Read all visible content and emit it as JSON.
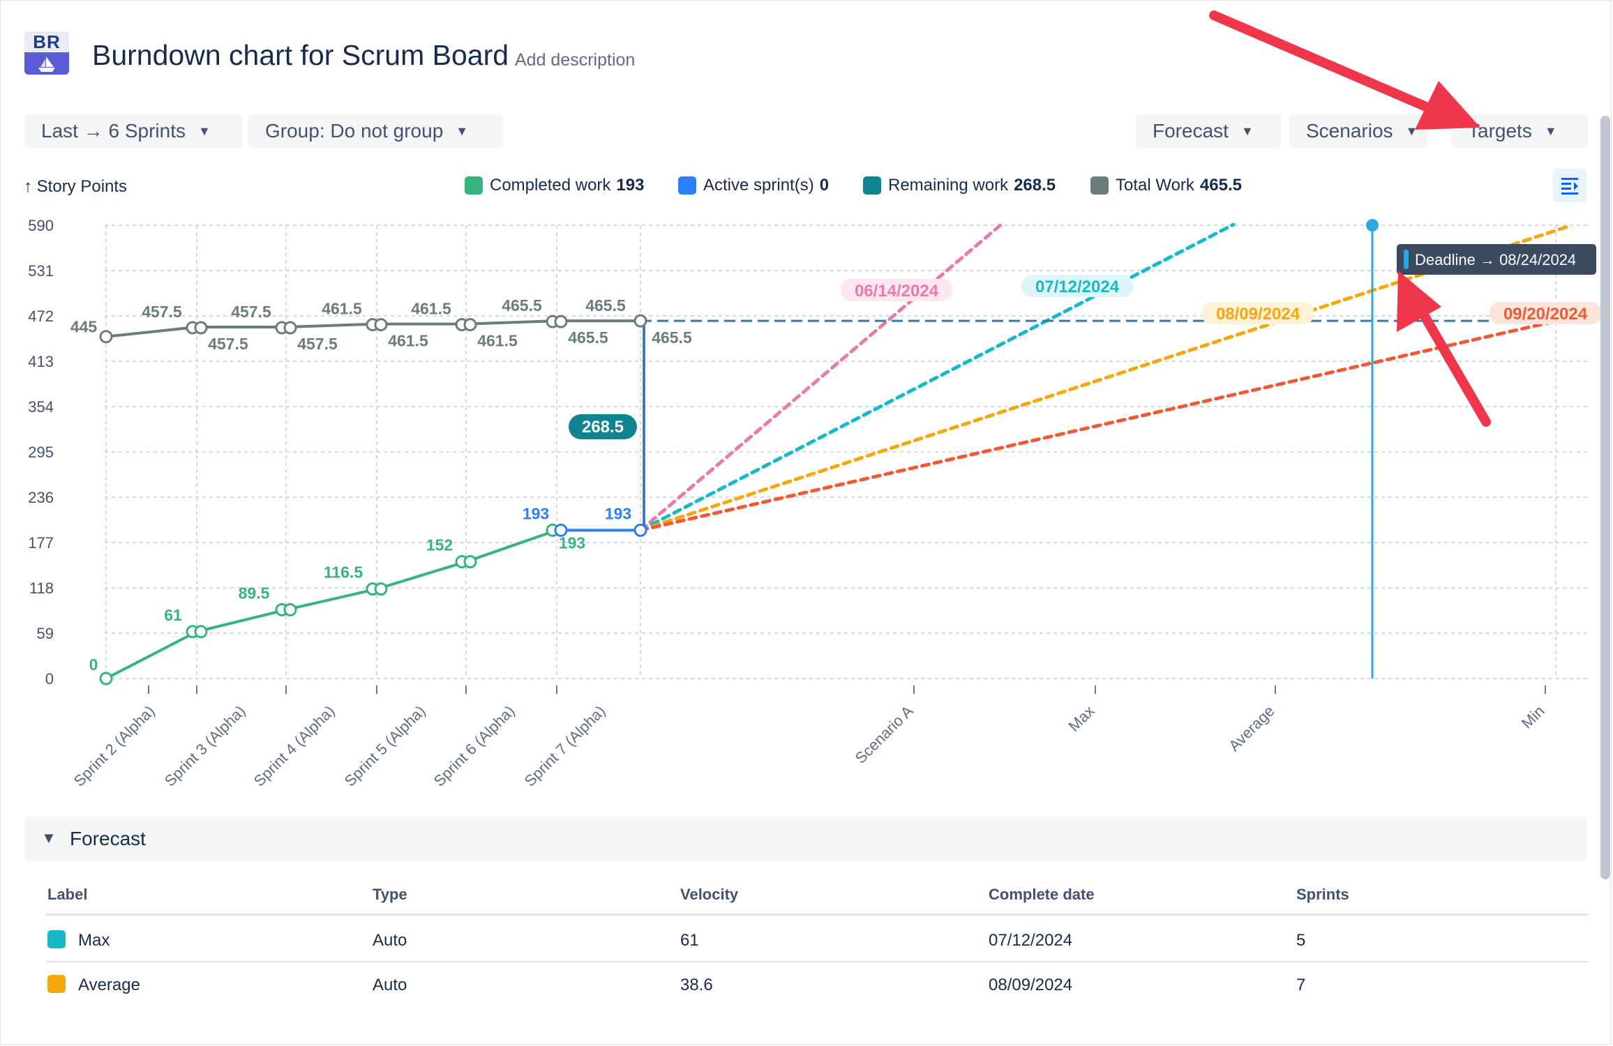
{
  "header": {
    "logo_text": "BR",
    "title": "Burndown chart for Scrum Board",
    "add_description": "Add description"
  },
  "toolbar": {
    "range": "Last → 6 Sprints",
    "group": "Group: Do not group",
    "forecast": "Forecast",
    "scenarios": "Scenarios",
    "targets": "Targets"
  },
  "colors": {
    "completed": "#36b37e",
    "active": "#2d7ff9",
    "remaining": "#0f8390",
    "total": "#6b7c7c",
    "pink": "#e67cae",
    "cyan": "#17b8c8",
    "orange": "#f5a70d",
    "red": "#ef5a36",
    "deadline": "#2ea6e0"
  },
  "legend": {
    "completed_label": "Completed work",
    "completed_value": "193",
    "active_label": "Active sprint(s)",
    "active_value": "0",
    "remaining_label": "Remaining work",
    "remaining_value": "268.5",
    "total_label": "Total Work",
    "total_value": "465.5"
  },
  "chart_data": {
    "type": "line",
    "ylabel": "↑ Story Points",
    "y_ticks": [
      0,
      59,
      118,
      177,
      236,
      295,
      354,
      413,
      472,
      531,
      590
    ],
    "ylim": [
      0,
      590
    ],
    "x_ticks": [
      "Sprint 2 (Alpha)",
      "Sprint 3 (Alpha)",
      "Sprint 4 (Alpha)",
      "Sprint 5 (Alpha)",
      "Sprint 6 (Alpha)",
      "Sprint 7 (Alpha)",
      "Scenario A",
      "Max",
      "Average",
      "Min"
    ],
    "series": [
      {
        "name": "Completed work",
        "values": [
          0,
          61,
          89.5,
          116.5,
          152,
          193,
          193
        ]
      },
      {
        "name": "Total Work",
        "values": [
          445,
          457.5,
          457.5,
          461.5,
          461.5,
          465.5,
          465.5
        ]
      }
    ],
    "remaining_label": "268.5",
    "forecast_dates": [
      "06/14/2024",
      "07/12/2024",
      "08/09/2024",
      "09/20/2024"
    ],
    "deadline_label": "Deadline → 08/24/2024",
    "grid": true
  },
  "forecast": {
    "title": "Forecast",
    "columns": [
      "Label",
      "Type",
      "Velocity",
      "Complete date",
      "Sprints"
    ],
    "rows": [
      {
        "label": "Max",
        "type": "Auto",
        "velocity": "61",
        "complete_date": "07/12/2024",
        "sprints": "5",
        "color": "#17b8c8"
      },
      {
        "label": "Average",
        "type": "Auto",
        "velocity": "38.6",
        "complete_date": "08/09/2024",
        "sprints": "7",
        "color": "#f5a70d"
      }
    ]
  }
}
